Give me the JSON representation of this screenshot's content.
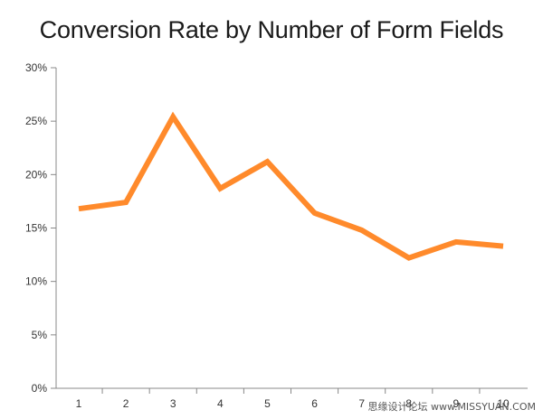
{
  "chart_data": {
    "type": "line",
    "title": "Conversion Rate by Number of Form Fields",
    "x": [
      1,
      2,
      3,
      4,
      5,
      6,
      7,
      8,
      9,
      10
    ],
    "x_tick_labels": [
      "1",
      "2",
      "3",
      "4",
      "5",
      "6",
      "7",
      "8",
      "9",
      "10"
    ],
    "series": [
      {
        "values": [
          16.8,
          17.4,
          25.4,
          18.7,
          21.2,
          16.4,
          14.8,
          12.2,
          13.7,
          13.3
        ],
        "color": "#ff8a2b"
      }
    ],
    "ylim": [
      0,
      30
    ],
    "y_ticks": [
      0,
      5,
      10,
      15,
      20,
      25,
      30
    ],
    "y_tick_labels": [
      "0%",
      "5%",
      "10%",
      "15%",
      "20%",
      "25%",
      "30%"
    ],
    "xlabel": "",
    "ylabel": "",
    "grid": false,
    "axis_color": "#888888"
  },
  "watermark": "思缘设计论坛 www.MISSYUAN.COM"
}
